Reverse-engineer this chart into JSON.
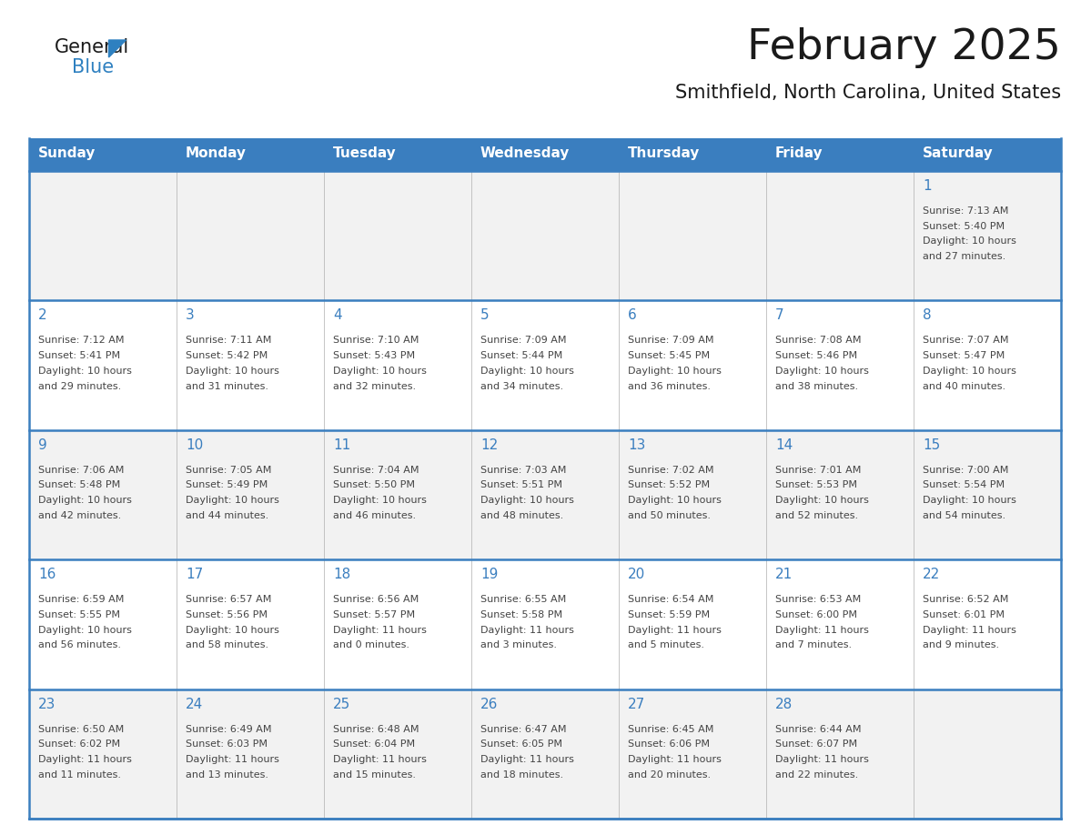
{
  "title": "February 2025",
  "subtitle": "Smithfield, North Carolina, United States",
  "header_color": "#3a7ebf",
  "header_text_color": "#ffffff",
  "cell_bg_odd": "#f2f2f2",
  "cell_bg_even": "#ffffff",
  "border_color": "#3a7ebf",
  "grid_color": "#bbbbbb",
  "day_num_color": "#3a7ebf",
  "text_color": "#444444",
  "days_of_week": [
    "Sunday",
    "Monday",
    "Tuesday",
    "Wednesday",
    "Thursday",
    "Friday",
    "Saturday"
  ],
  "calendar_data": [
    [
      null,
      null,
      null,
      null,
      null,
      null,
      {
        "day": "1",
        "sunrise": "7:13 AM",
        "sunset": "5:40 PM",
        "daylight": "10 hours",
        "daylight2": "and 27 minutes."
      }
    ],
    [
      {
        "day": "2",
        "sunrise": "7:12 AM",
        "sunset": "5:41 PM",
        "daylight": "10 hours",
        "daylight2": "and 29 minutes."
      },
      {
        "day": "3",
        "sunrise": "7:11 AM",
        "sunset": "5:42 PM",
        "daylight": "10 hours",
        "daylight2": "and 31 minutes."
      },
      {
        "day": "4",
        "sunrise": "7:10 AM",
        "sunset": "5:43 PM",
        "daylight": "10 hours",
        "daylight2": "and 32 minutes."
      },
      {
        "day": "5",
        "sunrise": "7:09 AM",
        "sunset": "5:44 PM",
        "daylight": "10 hours",
        "daylight2": "and 34 minutes."
      },
      {
        "day": "6",
        "sunrise": "7:09 AM",
        "sunset": "5:45 PM",
        "daylight": "10 hours",
        "daylight2": "and 36 minutes."
      },
      {
        "day": "7",
        "sunrise": "7:08 AM",
        "sunset": "5:46 PM",
        "daylight": "10 hours",
        "daylight2": "and 38 minutes."
      },
      {
        "day": "8",
        "sunrise": "7:07 AM",
        "sunset": "5:47 PM",
        "daylight": "10 hours",
        "daylight2": "and 40 minutes."
      }
    ],
    [
      {
        "day": "9",
        "sunrise": "7:06 AM",
        "sunset": "5:48 PM",
        "daylight": "10 hours",
        "daylight2": "and 42 minutes."
      },
      {
        "day": "10",
        "sunrise": "7:05 AM",
        "sunset": "5:49 PM",
        "daylight": "10 hours",
        "daylight2": "and 44 minutes."
      },
      {
        "day": "11",
        "sunrise": "7:04 AM",
        "sunset": "5:50 PM",
        "daylight": "10 hours",
        "daylight2": "and 46 minutes."
      },
      {
        "day": "12",
        "sunrise": "7:03 AM",
        "sunset": "5:51 PM",
        "daylight": "10 hours",
        "daylight2": "and 48 minutes."
      },
      {
        "day": "13",
        "sunrise": "7:02 AM",
        "sunset": "5:52 PM",
        "daylight": "10 hours",
        "daylight2": "and 50 minutes."
      },
      {
        "day": "14",
        "sunrise": "7:01 AM",
        "sunset": "5:53 PM",
        "daylight": "10 hours",
        "daylight2": "and 52 minutes."
      },
      {
        "day": "15",
        "sunrise": "7:00 AM",
        "sunset": "5:54 PM",
        "daylight": "10 hours",
        "daylight2": "and 54 minutes."
      }
    ],
    [
      {
        "day": "16",
        "sunrise": "6:59 AM",
        "sunset": "5:55 PM",
        "daylight": "10 hours",
        "daylight2": "and 56 minutes."
      },
      {
        "day": "17",
        "sunrise": "6:57 AM",
        "sunset": "5:56 PM",
        "daylight": "10 hours",
        "daylight2": "and 58 minutes."
      },
      {
        "day": "18",
        "sunrise": "6:56 AM",
        "sunset": "5:57 PM",
        "daylight": "11 hours",
        "daylight2": "and 0 minutes."
      },
      {
        "day": "19",
        "sunrise": "6:55 AM",
        "sunset": "5:58 PM",
        "daylight": "11 hours",
        "daylight2": "and 3 minutes."
      },
      {
        "day": "20",
        "sunrise": "6:54 AM",
        "sunset": "5:59 PM",
        "daylight": "11 hours",
        "daylight2": "and 5 minutes."
      },
      {
        "day": "21",
        "sunrise": "6:53 AM",
        "sunset": "6:00 PM",
        "daylight": "11 hours",
        "daylight2": "and 7 minutes."
      },
      {
        "day": "22",
        "sunrise": "6:52 AM",
        "sunset": "6:01 PM",
        "daylight": "11 hours",
        "daylight2": "and 9 minutes."
      }
    ],
    [
      {
        "day": "23",
        "sunrise": "6:50 AM",
        "sunset": "6:02 PM",
        "daylight": "11 hours",
        "daylight2": "and 11 minutes."
      },
      {
        "day": "24",
        "sunrise": "6:49 AM",
        "sunset": "6:03 PM",
        "daylight": "11 hours",
        "daylight2": "and 13 minutes."
      },
      {
        "day": "25",
        "sunrise": "6:48 AM",
        "sunset": "6:04 PM",
        "daylight": "11 hours",
        "daylight2": "and 15 minutes."
      },
      {
        "day": "26",
        "sunrise": "6:47 AM",
        "sunset": "6:05 PM",
        "daylight": "11 hours",
        "daylight2": "and 18 minutes."
      },
      {
        "day": "27",
        "sunrise": "6:45 AM",
        "sunset": "6:06 PM",
        "daylight": "11 hours",
        "daylight2": "and 20 minutes."
      },
      {
        "day": "28",
        "sunrise": "6:44 AM",
        "sunset": "6:07 PM",
        "daylight": "11 hours",
        "daylight2": "and 22 minutes."
      },
      null
    ]
  ]
}
